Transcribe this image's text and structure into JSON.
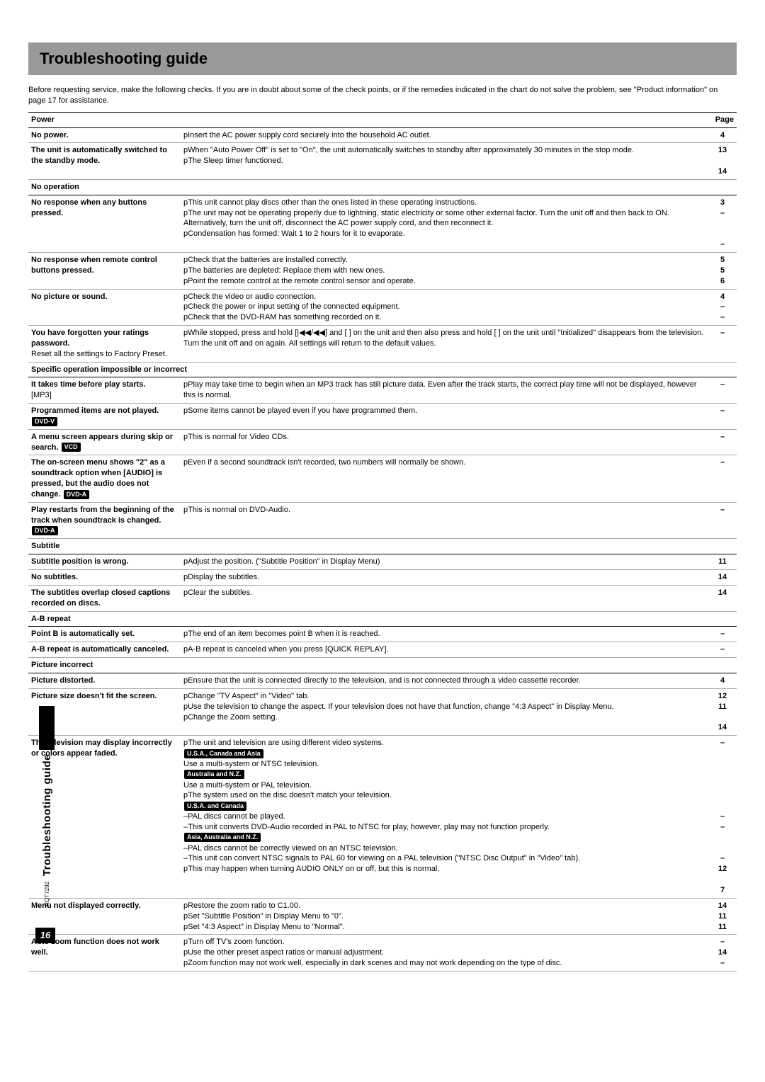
{
  "page": {
    "title": "Troubleshooting guide",
    "intro": "Before requesting service, make the following checks. If you are in doubt about some of the check points, or if the remedies indicated in the chart do not solve the problem, see \"Product information\" on page 17 for assistance.",
    "pageLabel": "Page",
    "sideLabel": "Troubleshooting guide",
    "docCode": "RQT7292",
    "pageNumber": "16"
  },
  "sections": [
    {
      "header": "Power",
      "rows": [
        {
          "issue": "No power.",
          "remedy": "pInsert the AC power supply cord securely into the household AC outlet.",
          "pages": "4"
        },
        {
          "issue": "The unit is automatically switched to the standby mode.",
          "remedy": "pWhen \"Auto Power Off\" is set to \"On\", the unit automatically switches to standby after approximately 30 minutes in the stop mode.\npThe Sleep timer functioned.",
          "pages": "13\n\n14"
        }
      ]
    },
    {
      "header": "No operation",
      "rows": [
        {
          "issue": "No response when any buttons pressed.",
          "remedy": "pThis unit cannot play discs other than the ones listed in these operating instructions.\npThe unit may not be operating properly due to lightning, static electricity or some other external factor. Turn the unit off and then back to ON. Alternatively, turn the unit off, disconnect the AC power supply cord, and then reconnect it.\npCondensation has formed: Wait 1 to 2 hours for it to evaporate.",
          "pages": "3\n–\n\n\n–"
        },
        {
          "issue": "No response when remote control buttons pressed.",
          "remedy": "pCheck that the batteries are installed correctly.\npThe batteries are depleted: Replace them with new ones.\npPoint the remote control at the remote control sensor and operate.",
          "pages": "5\n5\n6"
        },
        {
          "issue": "No picture or sound.",
          "remedy": "pCheck the video or audio connection.\npCheck the power or input setting of the connected equipment.\npCheck that the DVD-RAM has something recorded on it.",
          "pages": "4\n–\n–"
        },
        {
          "issue_html": "<b>You have forgotten your ratings password.</b><br><span class='norm-weight'>Reset all the settings to Factory Preset.</span>",
          "remedy": "pWhile stopped, press and hold [|◀◀/◀◀] and [   ] on the unit and then also press and hold [   ] on the unit until \"Initialized\" disappears from the television. Turn the unit off and on again. All settings will return to the default values.",
          "pages": "–"
        }
      ]
    },
    {
      "header": "Specific operation impossible or incorrect",
      "rows": [
        {
          "issue_html": "<b>It takes time before play starts.</b><br><span class='norm-weight'>[MP3]</span>",
          "remedy": "pPlay may take time to begin when an MP3 track has still picture data. Even after the track starts, the correct play time will not be displayed, however this is normal.",
          "pages": "–"
        },
        {
          "issue_html": "<b>Programmed items are not played.</b> <span class='inv'>DVD-V</span>",
          "remedy": "pSome items cannot be played even if you have programmed them.",
          "pages": "–"
        },
        {
          "issue_html": "<b>A menu screen appears during skip or search.</b> <span class='inv'>VCD</span>",
          "remedy": "pThis is normal for Video CDs.",
          "pages": "–"
        },
        {
          "issue_html": "<b>The on-screen menu shows \"2\" as a soundtrack option when [AUDIO] is pressed, but the audio does not change.</b> <span class='inv'>DVD-A</span>",
          "remedy": "pEven if a second soundtrack isn't recorded, two numbers will normally be shown.",
          "pages": "–"
        },
        {
          "issue_html": "<b>Play restarts from the beginning of the track when soundtrack is changed.</b> <span class='inv'>DVD-A</span>",
          "remedy": "pThis is normal on DVD-Audio.",
          "pages": "–"
        }
      ]
    },
    {
      "header": "Subtitle",
      "rows": [
        {
          "issue": "Subtitle position is wrong.",
          "remedy": "pAdjust the position. (\"Subtitle Position\" in Display Menu)",
          "pages": "11"
        },
        {
          "issue": "No subtitles.",
          "remedy": "pDisplay the subtitles.",
          "pages": "14"
        },
        {
          "issue": "The subtitles overlap closed captions recorded on discs.",
          "remedy": "pClear the subtitles.",
          "pages": "14"
        }
      ]
    },
    {
      "header": "A-B repeat",
      "rows": [
        {
          "issue": "Point B is automatically set.",
          "remedy": "pThe end of an item becomes point B when it is reached.",
          "pages": "–"
        },
        {
          "issue": "A-B repeat is automatically canceled.",
          "remedy": "pA-B repeat is canceled when you press [QUICK REPLAY].",
          "pages": "–"
        }
      ]
    },
    {
      "header": "Picture incorrect",
      "rows": [
        {
          "issue": "Picture distorted.",
          "remedy": "pEnsure that the unit is connected directly to the television, and is not connected through a video cassette recorder.",
          "pages": "4"
        },
        {
          "issue": "Picture size doesn't fit the screen.",
          "remedy": "pChange \"TV Aspect\" in \"Video\" tab.\npUse the television to change the aspect. If your television does not have that function, change \"4:3 Aspect\" in Display Menu.\npChange the Zoom setting.",
          "pages": "12\n11\n\n14"
        },
        {
          "issue": "The television may display incorrectly or colors appear faded.",
          "remedy_html": "pThe unit and television are using different video systems.<br><span class='inv'>U.S.A., Canada and Asia</span><br>Use a multi-system or NTSC television.<br><span class='inv'>Australia and N.Z.</span><br>Use a multi-system or PAL television.<br>pThe system used on the disc doesn't match your television.<br><span class='inv'>U.S.A. and Canada</span><br>–PAL discs cannot be played.<br>–This unit converts DVD-Audio recorded in PAL to NTSC for play, however, play may not function properly.<br><span class='inv'>Asia, Australia and N.Z.</span><br>–PAL discs cannot be correctly viewed on an NTSC television.<br>–This unit can convert NTSC signals to PAL 60 for viewing on a PAL television (\"NTSC Disc Output\" in \"Video\" tab).<br>pThis may happen when turning AUDIO ONLY on or off, but this is normal.",
          "pages": "–\n\n\n\n\n\n\n–\n–\n\n\n–\n12\n\n7"
        },
        {
          "issue": "Menu not displayed correctly.",
          "remedy": "pRestore the zoom ratio to  C1.00.\npSet \"Subtitle Position\" in Display Menu to \"0\".\npSet \"4:3 Aspect\" in Display Menu to \"Normal\".",
          "pages": "14\n11\n11"
        },
        {
          "issue": "Auto zoom function does not work well.",
          "remedy": "pTurn off TV's zoom function.\npUse the other preset aspect ratios or manual adjustment.\npZoom function may not work well, especially in dark scenes and may not work depending on the type of disc.",
          "pages": "–\n14\n–"
        }
      ]
    }
  ]
}
